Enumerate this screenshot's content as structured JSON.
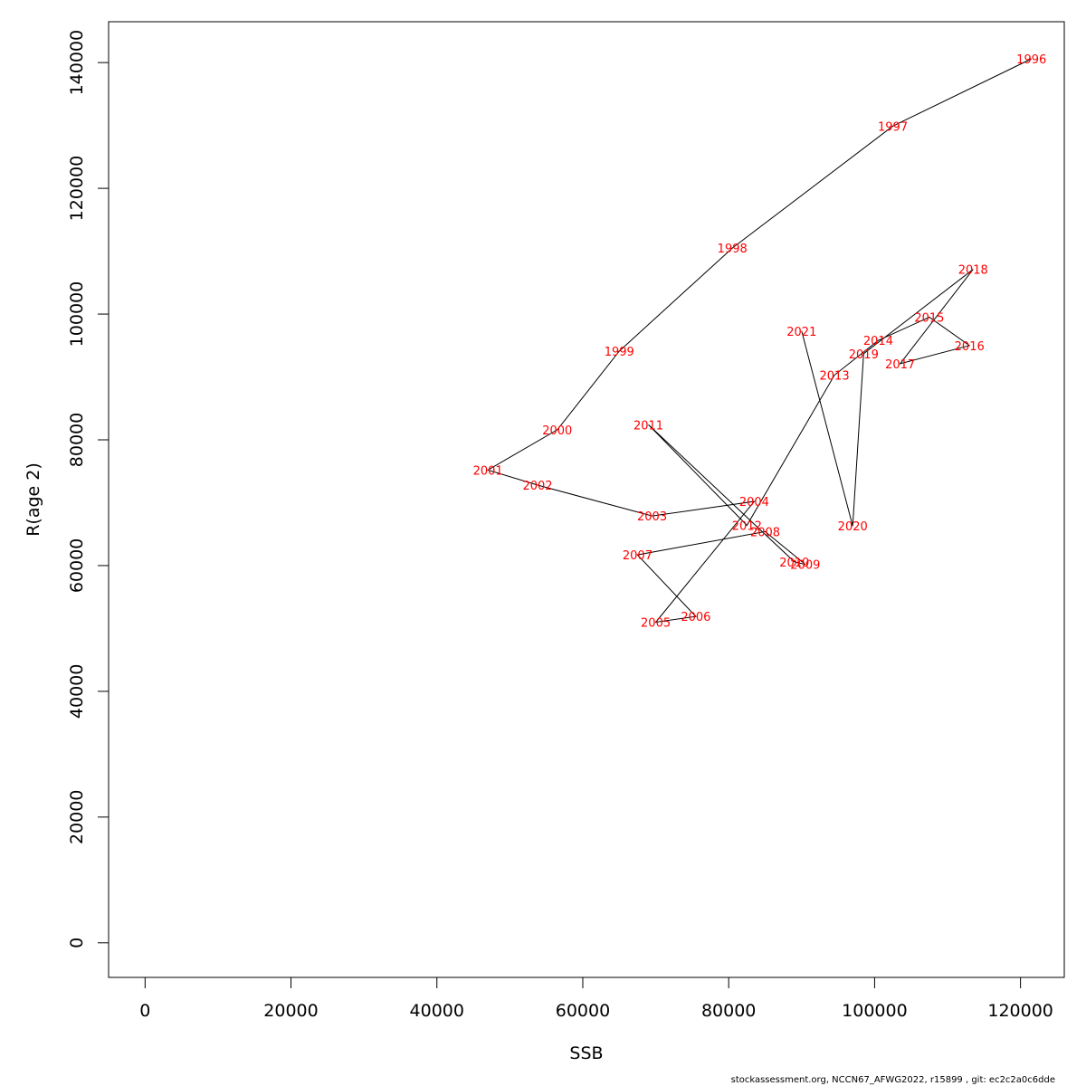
{
  "chart_data": {
    "type": "line",
    "xlabel": "SSB",
    "ylabel": "R(age 2)",
    "xlim": [
      -5000,
      126000
    ],
    "ylim": [
      -5500,
      146500
    ],
    "xticks": [
      0,
      20000,
      40000,
      60000,
      80000,
      100000,
      120000
    ],
    "xtick_labels": [
      "0",
      "20000",
      "40000",
      "60000",
      "80000",
      "100000",
      "120000"
    ],
    "yticks": [
      0,
      20000,
      40000,
      60000,
      80000,
      100000,
      120000,
      140000
    ],
    "ytick_labels": [
      "0",
      "20000",
      "40000",
      "60000",
      "80000",
      "100000",
      "120000",
      "140000"
    ],
    "grid": false,
    "line_color": "#000000",
    "label_color": "#ff0000",
    "points": [
      {
        "year": "1996",
        "x": 121500,
        "y": 140600
      },
      {
        "year": "1997",
        "x": 102500,
        "y": 129900
      },
      {
        "year": "1998",
        "x": 80500,
        "y": 110500
      },
      {
        "year": "1999",
        "x": 65000,
        "y": 94100
      },
      {
        "year": "2000",
        "x": 56500,
        "y": 81600
      },
      {
        "year": "2001",
        "x": 47000,
        "y": 75200
      },
      {
        "year": "2002",
        "x": 53800,
        "y": 72800
      },
      {
        "year": "2003",
        "x": 69500,
        "y": 67900
      },
      {
        "year": "2004",
        "x": 83500,
        "y": 70200
      },
      {
        "year": "2005",
        "x": 70000,
        "y": 51000
      },
      {
        "year": "2006",
        "x": 75500,
        "y": 51900
      },
      {
        "year": "2007",
        "x": 67500,
        "y": 61700
      },
      {
        "year": "2008",
        "x": 85000,
        "y": 65400
      },
      {
        "year": "2009",
        "x": 90500,
        "y": 60200
      },
      {
        "year": "2010",
        "x": 89000,
        "y": 60600
      },
      {
        "year": "2011",
        "x": 69000,
        "y": 82400
      },
      {
        "year": "2012",
        "x": 82500,
        "y": 66400
      },
      {
        "year": "2013",
        "x": 94500,
        "y": 90300
      },
      {
        "year": "2014",
        "x": 100500,
        "y": 95800
      },
      {
        "year": "2015",
        "x": 107500,
        "y": 99500
      },
      {
        "year": "2016",
        "x": 113000,
        "y": 95000
      },
      {
        "year": "2017",
        "x": 103500,
        "y": 92100
      },
      {
        "year": "2018",
        "x": 113500,
        "y": 107100
      },
      {
        "year": "2019",
        "x": 98500,
        "y": 93700
      },
      {
        "year": "2020",
        "x": 97000,
        "y": 66300
      },
      {
        "year": "2021",
        "x": 90000,
        "y": 97300
      }
    ]
  },
  "footer": {
    "text": "stockassessment.org, NCCN67_AFWG2022, r15899 , git: ec2c2a0c6dde"
  }
}
